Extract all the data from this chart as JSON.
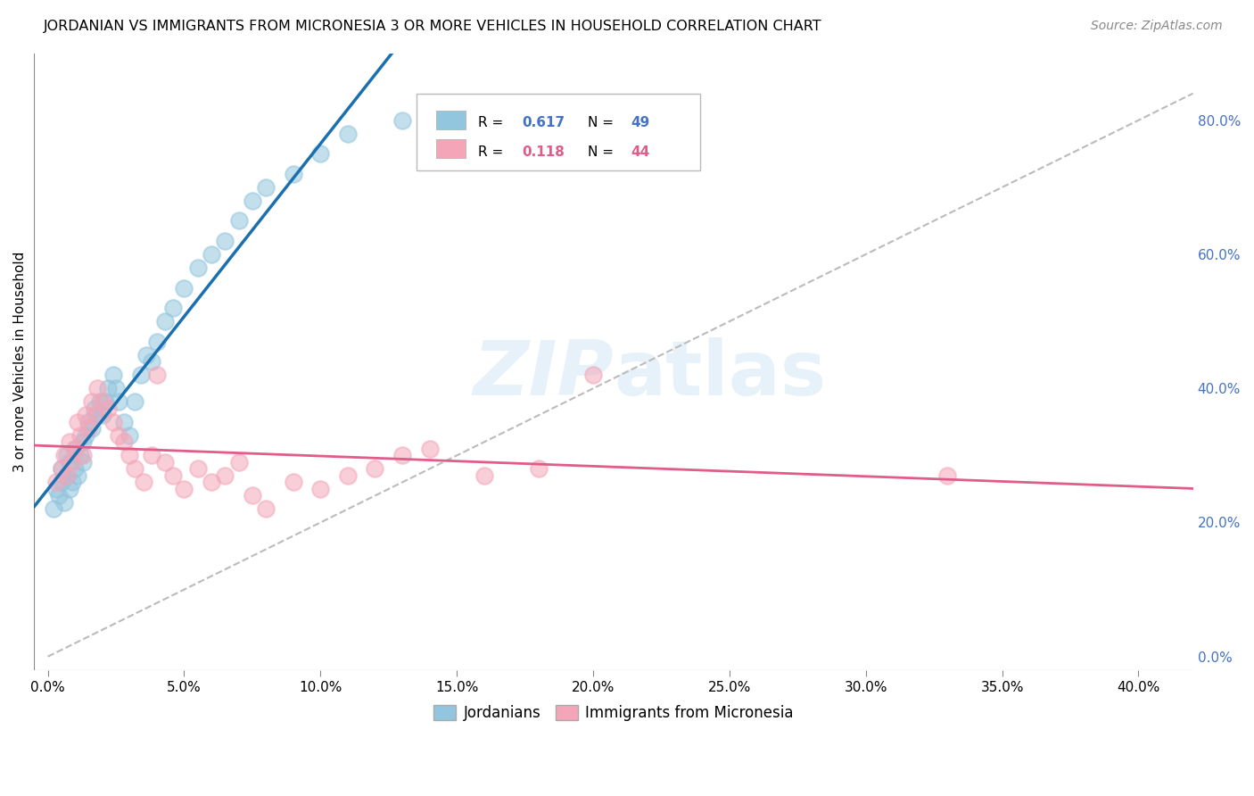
{
  "title": "JORDANIAN VS IMMIGRANTS FROM MICRONESIA 3 OR MORE VEHICLES IN HOUSEHOLD CORRELATION CHART",
  "source": "Source: ZipAtlas.com",
  "xlim": [
    -0.5,
    42
  ],
  "ylim": [
    -2,
    90
  ],
  "xticks": [
    0,
    5,
    10,
    15,
    20,
    25,
    30,
    35,
    40
  ],
  "yticks": [
    0,
    20,
    40,
    60,
    80
  ],
  "ylabel": "3 or more Vehicles in Household",
  "r1": "0.617",
  "n1": "49",
  "r2": "0.118",
  "n2": "44",
  "color_blue": "#92c5de",
  "color_pink": "#f4a6b8",
  "color_blue_line": "#1a6faf",
  "color_pink_line": "#e05c8a",
  "color_ref_line": "#bbbbbb",
  "background_color": "#ffffff",
  "grid_color": "#d0d0d0",
  "jordanians_x": [
    0.2,
    0.3,
    0.4,
    0.5,
    0.5,
    0.6,
    0.7,
    0.7,
    0.8,
    0.8,
    0.9,
    1.0,
    1.0,
    1.1,
    1.2,
    1.3,
    1.3,
    1.4,
    1.5,
    1.6,
    1.7,
    1.8,
    1.9,
    2.0,
    2.1,
    2.2,
    2.4,
    2.5,
    2.6,
    2.8,
    3.0,
    3.2,
    3.4,
    3.6,
    3.8,
    4.0,
    4.3,
    4.6,
    5.0,
    5.5,
    6.0,
    6.5,
    7.0,
    7.5,
    8.0,
    9.0,
    10.0,
    11.0,
    13.0
  ],
  "jordanians_y": [
    22,
    25,
    24,
    26,
    28,
    23,
    27,
    30,
    25,
    29,
    26,
    28,
    31,
    27,
    30,
    32,
    29,
    33,
    35,
    34,
    37,
    36,
    38,
    36,
    38,
    40,
    42,
    40,
    38,
    35,
    33,
    38,
    42,
    45,
    44,
    47,
    50,
    52,
    55,
    58,
    60,
    62,
    65,
    68,
    70,
    72,
    75,
    78,
    80
  ],
  "micronesia_x": [
    0.3,
    0.5,
    0.6,
    0.7,
    0.8,
    0.9,
    1.0,
    1.1,
    1.2,
    1.3,
    1.4,
    1.5,
    1.6,
    1.7,
    1.8,
    2.0,
    2.2,
    2.4,
    2.6,
    2.8,
    3.0,
    3.2,
    3.5,
    3.8,
    4.0,
    4.3,
    4.6,
    5.0,
    5.5,
    6.0,
    6.5,
    7.0,
    7.5,
    8.0,
    9.0,
    10.0,
    11.0,
    12.0,
    13.0,
    14.0,
    16.0,
    18.0,
    20.0,
    33.0
  ],
  "micronesia_y": [
    26,
    28,
    30,
    27,
    32,
    29,
    31,
    35,
    33,
    30,
    36,
    34,
    38,
    36,
    40,
    38,
    37,
    35,
    33,
    32,
    30,
    28,
    26,
    30,
    42,
    29,
    27,
    25,
    28,
    26,
    27,
    29,
    24,
    22,
    26,
    25,
    27,
    28,
    30,
    31,
    27,
    28,
    42,
    27
  ]
}
